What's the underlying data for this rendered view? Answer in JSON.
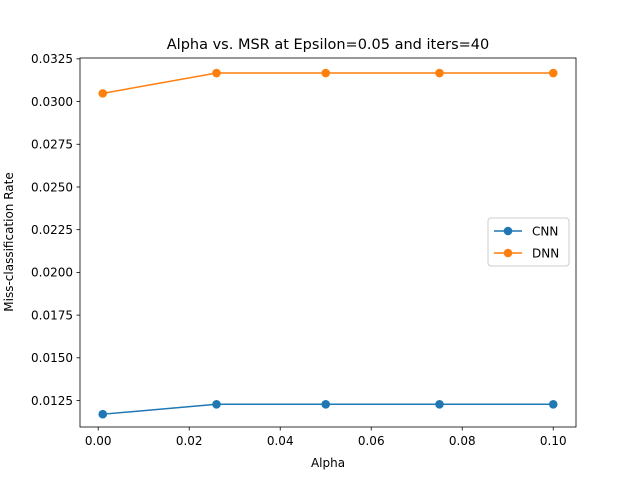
{
  "chart_data": {
    "type": "line",
    "title": "Alpha vs. MSR at Epsilon=0.05 and iters=40",
    "xlabel": "Alpha",
    "ylabel": "Miss-classification Rate",
    "x": [
      0.001,
      0.026,
      0.05,
      0.075,
      0.1
    ],
    "xlim": [
      -0.004,
      0.105
    ],
    "ylim": [
      0.01095,
      0.03255
    ],
    "xticks": [
      0.0,
      0.02,
      0.04,
      0.06,
      0.08,
      0.1
    ],
    "xtick_labels": [
      "0.00",
      "0.02",
      "0.04",
      "0.06",
      "0.08",
      "0.10"
    ],
    "yticks": [
      0.0125,
      0.015,
      0.0175,
      0.02,
      0.0225,
      0.025,
      0.0275,
      0.03,
      0.0325
    ],
    "ytick_labels": [
      "0.0125",
      "0.0150",
      "0.0175",
      "0.0200",
      "0.0225",
      "0.0250",
      "0.0275",
      "0.0300",
      "0.0325"
    ],
    "grid": false,
    "legend_position": "center-right",
    "series": [
      {
        "name": "CNN",
        "color": "#1f77b4",
        "marker": "circle",
        "values": [
          0.0117,
          0.01228,
          0.01228,
          0.01228,
          0.01228
        ]
      },
      {
        "name": "DNN",
        "color": "#ff7f0e",
        "marker": "circle",
        "values": [
          0.03048,
          0.03167,
          0.03167,
          0.03167,
          0.03167
        ]
      }
    ]
  }
}
